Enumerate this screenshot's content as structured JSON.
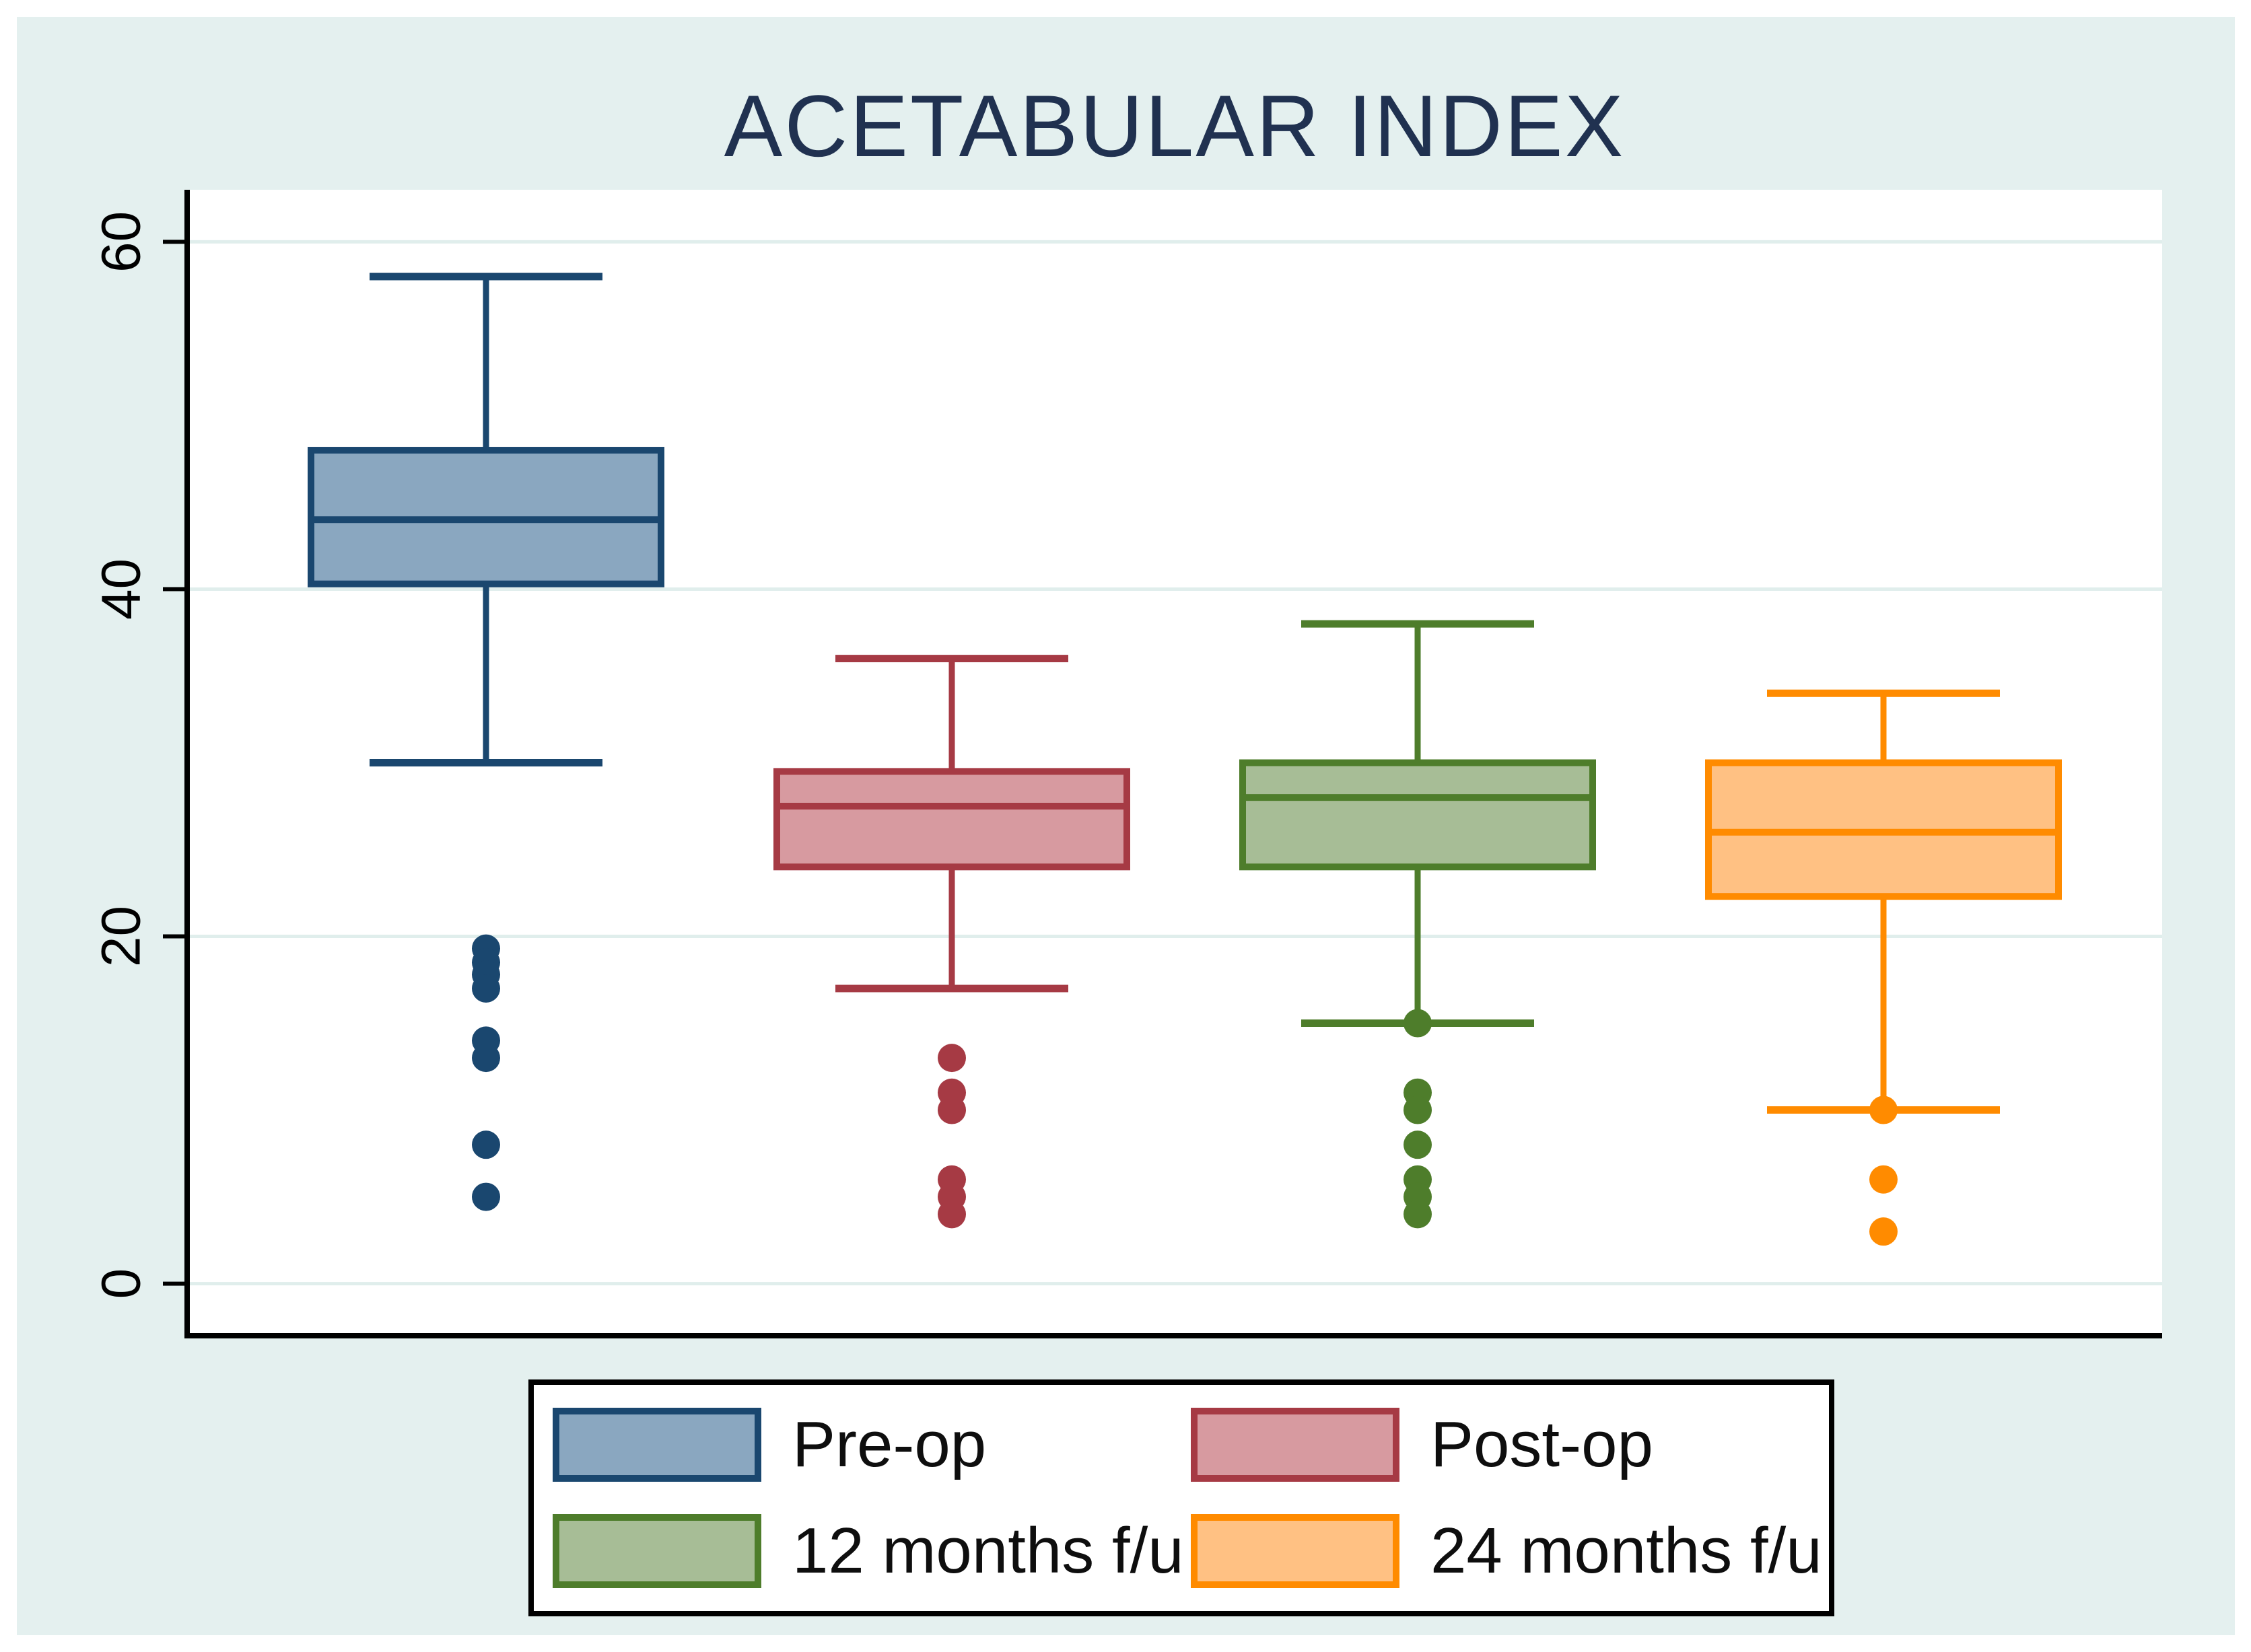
{
  "chart_data": {
    "type": "box",
    "title": "ACETABULAR INDEX",
    "xlabel": "",
    "ylabel": "",
    "y_axis": {
      "min": -3,
      "max": 63,
      "ticks": [
        0,
        20,
        40,
        60
      ],
      "tick_labels": [
        "0",
        "20",
        "40",
        "60"
      ],
      "tick_labels_rotated": true
    },
    "grid": true,
    "legend_position": "bottom",
    "series": [
      {
        "name": "Pre-op",
        "border_color": "#1a476f",
        "fill_color": "#8aa7c0",
        "whisker_low": 30,
        "q1": 40.3,
        "median": 44,
        "q3": 48,
        "whisker_high": 58,
        "outliers": [
          19.3,
          18.5,
          17.8,
          17,
          14,
          13,
          8,
          5
        ]
      },
      {
        "name": "Post-op",
        "border_color": "#a63a44",
        "fill_color": "#d79aa0",
        "whisker_low": 17,
        "q1": 24,
        "median": 27.5,
        "q3": 29.5,
        "whisker_high": 36,
        "outliers": [
          13,
          11,
          10,
          6,
          5,
          4
        ]
      },
      {
        "name": "12 months f/u",
        "border_color": "#4e7d2b",
        "fill_color": "#a7bd96",
        "whisker_low": 15,
        "q1": 24,
        "median": 28,
        "q3": 30,
        "whisker_high": 38,
        "outliers": [
          15,
          11,
          10,
          8,
          6,
          5,
          4
        ]
      },
      {
        "name": "24 months f/u",
        "border_color": "#ff8b00",
        "fill_color": "#ffc183",
        "whisker_low": 10,
        "q1": 22.3,
        "median": 26,
        "q3": 30,
        "whisker_high": 34,
        "outliers": [
          10,
          6,
          3
        ]
      }
    ],
    "colors": {
      "page_background": "#ffffff",
      "panel_background": "#e4f0ef",
      "plot_background": "#ffffff",
      "gridline": "#e0eeec",
      "axis": "#000000",
      "title": "#203150",
      "tick_label": "#000000",
      "legend_border": "#000000",
      "legend_text": "#0e0e0e"
    }
  }
}
